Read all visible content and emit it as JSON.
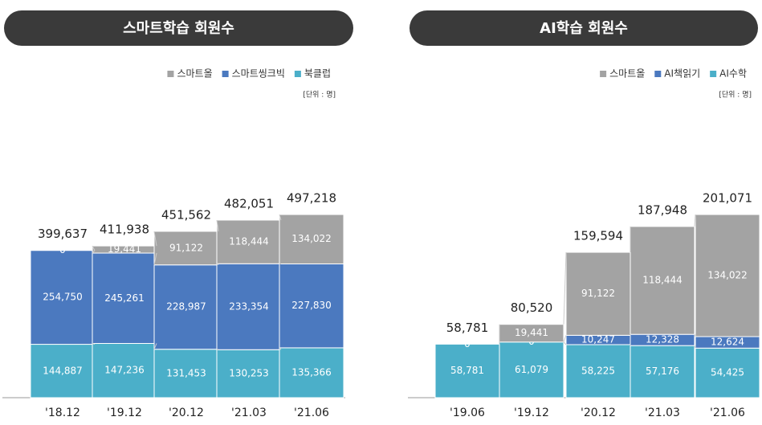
{
  "chart_data": [
    {
      "type": "stacked-bar",
      "title": "스마트학습 회원수",
      "unit_label": "[단위 : 명]",
      "categories": [
        "'18.12",
        "'19.12",
        "'20.12",
        "'21.03",
        "'21.06"
      ],
      "series": [
        {
          "name": "스마트올",
          "color": "#a3a3a3",
          "values": [
            0,
            19441,
            91122,
            118444,
            134022
          ],
          "value_labels": [
            "0",
            "19,441",
            "91,122",
            "118,444",
            "134,022"
          ]
        },
        {
          "name": "스마트씽크빅",
          "color": "#4b79bf",
          "values": [
            254750,
            245261,
            228987,
            233354,
            227830
          ],
          "value_labels": [
            "254,750",
            "245,261",
            "228,987",
            "233,354",
            "227,830"
          ]
        },
        {
          "name": "북클럽",
          "color": "#4bafc9",
          "values": [
            144887,
            147236,
            131453,
            130253,
            135366
          ],
          "value_labels": [
            "144,887",
            "147,236",
            "131,453",
            "130,253",
            "135,366"
          ]
        }
      ],
      "totals": {
        "values": [
          399637,
          411938,
          451562,
          482051,
          497218
        ],
        "value_labels": [
          "399,637",
          "411,938",
          "451,562",
          "482,051",
          "497,218"
        ]
      }
    },
    {
      "type": "stacked-bar",
      "title": "AI학습 회원수",
      "unit_label": "[단위 : 명]",
      "categories": [
        "'19.06",
        "'19.12",
        "'20.12",
        "'21.03",
        "'21.06"
      ],
      "series": [
        {
          "name": "스마트올",
          "color": "#a3a3a3",
          "values": [
            null,
            19441,
            91122,
            118444,
            134022
          ],
          "value_labels": [
            null,
            "19,441",
            "91,122",
            "118,444",
            "134,022"
          ]
        },
        {
          "name": "AI책읽기",
          "color": "#4b79bf",
          "values": [
            0,
            0,
            10247,
            12328,
            12624
          ],
          "value_labels": [
            "0",
            "0",
            "10,247",
            "12,328",
            "12,624"
          ]
        },
        {
          "name": "AI수학",
          "color": "#4bafc9",
          "values": [
            58781,
            61079,
            58225,
            57176,
            54425
          ],
          "value_labels": [
            "58,781",
            "61,079",
            "58,225",
            "57,176",
            "54,425"
          ]
        }
      ],
      "totals": {
        "values": [
          58781,
          80520,
          159594,
          187948,
          201071
        ],
        "value_labels": [
          "58,781",
          "80,520",
          "159,594",
          "187,948",
          "201,071"
        ]
      }
    }
  ]
}
